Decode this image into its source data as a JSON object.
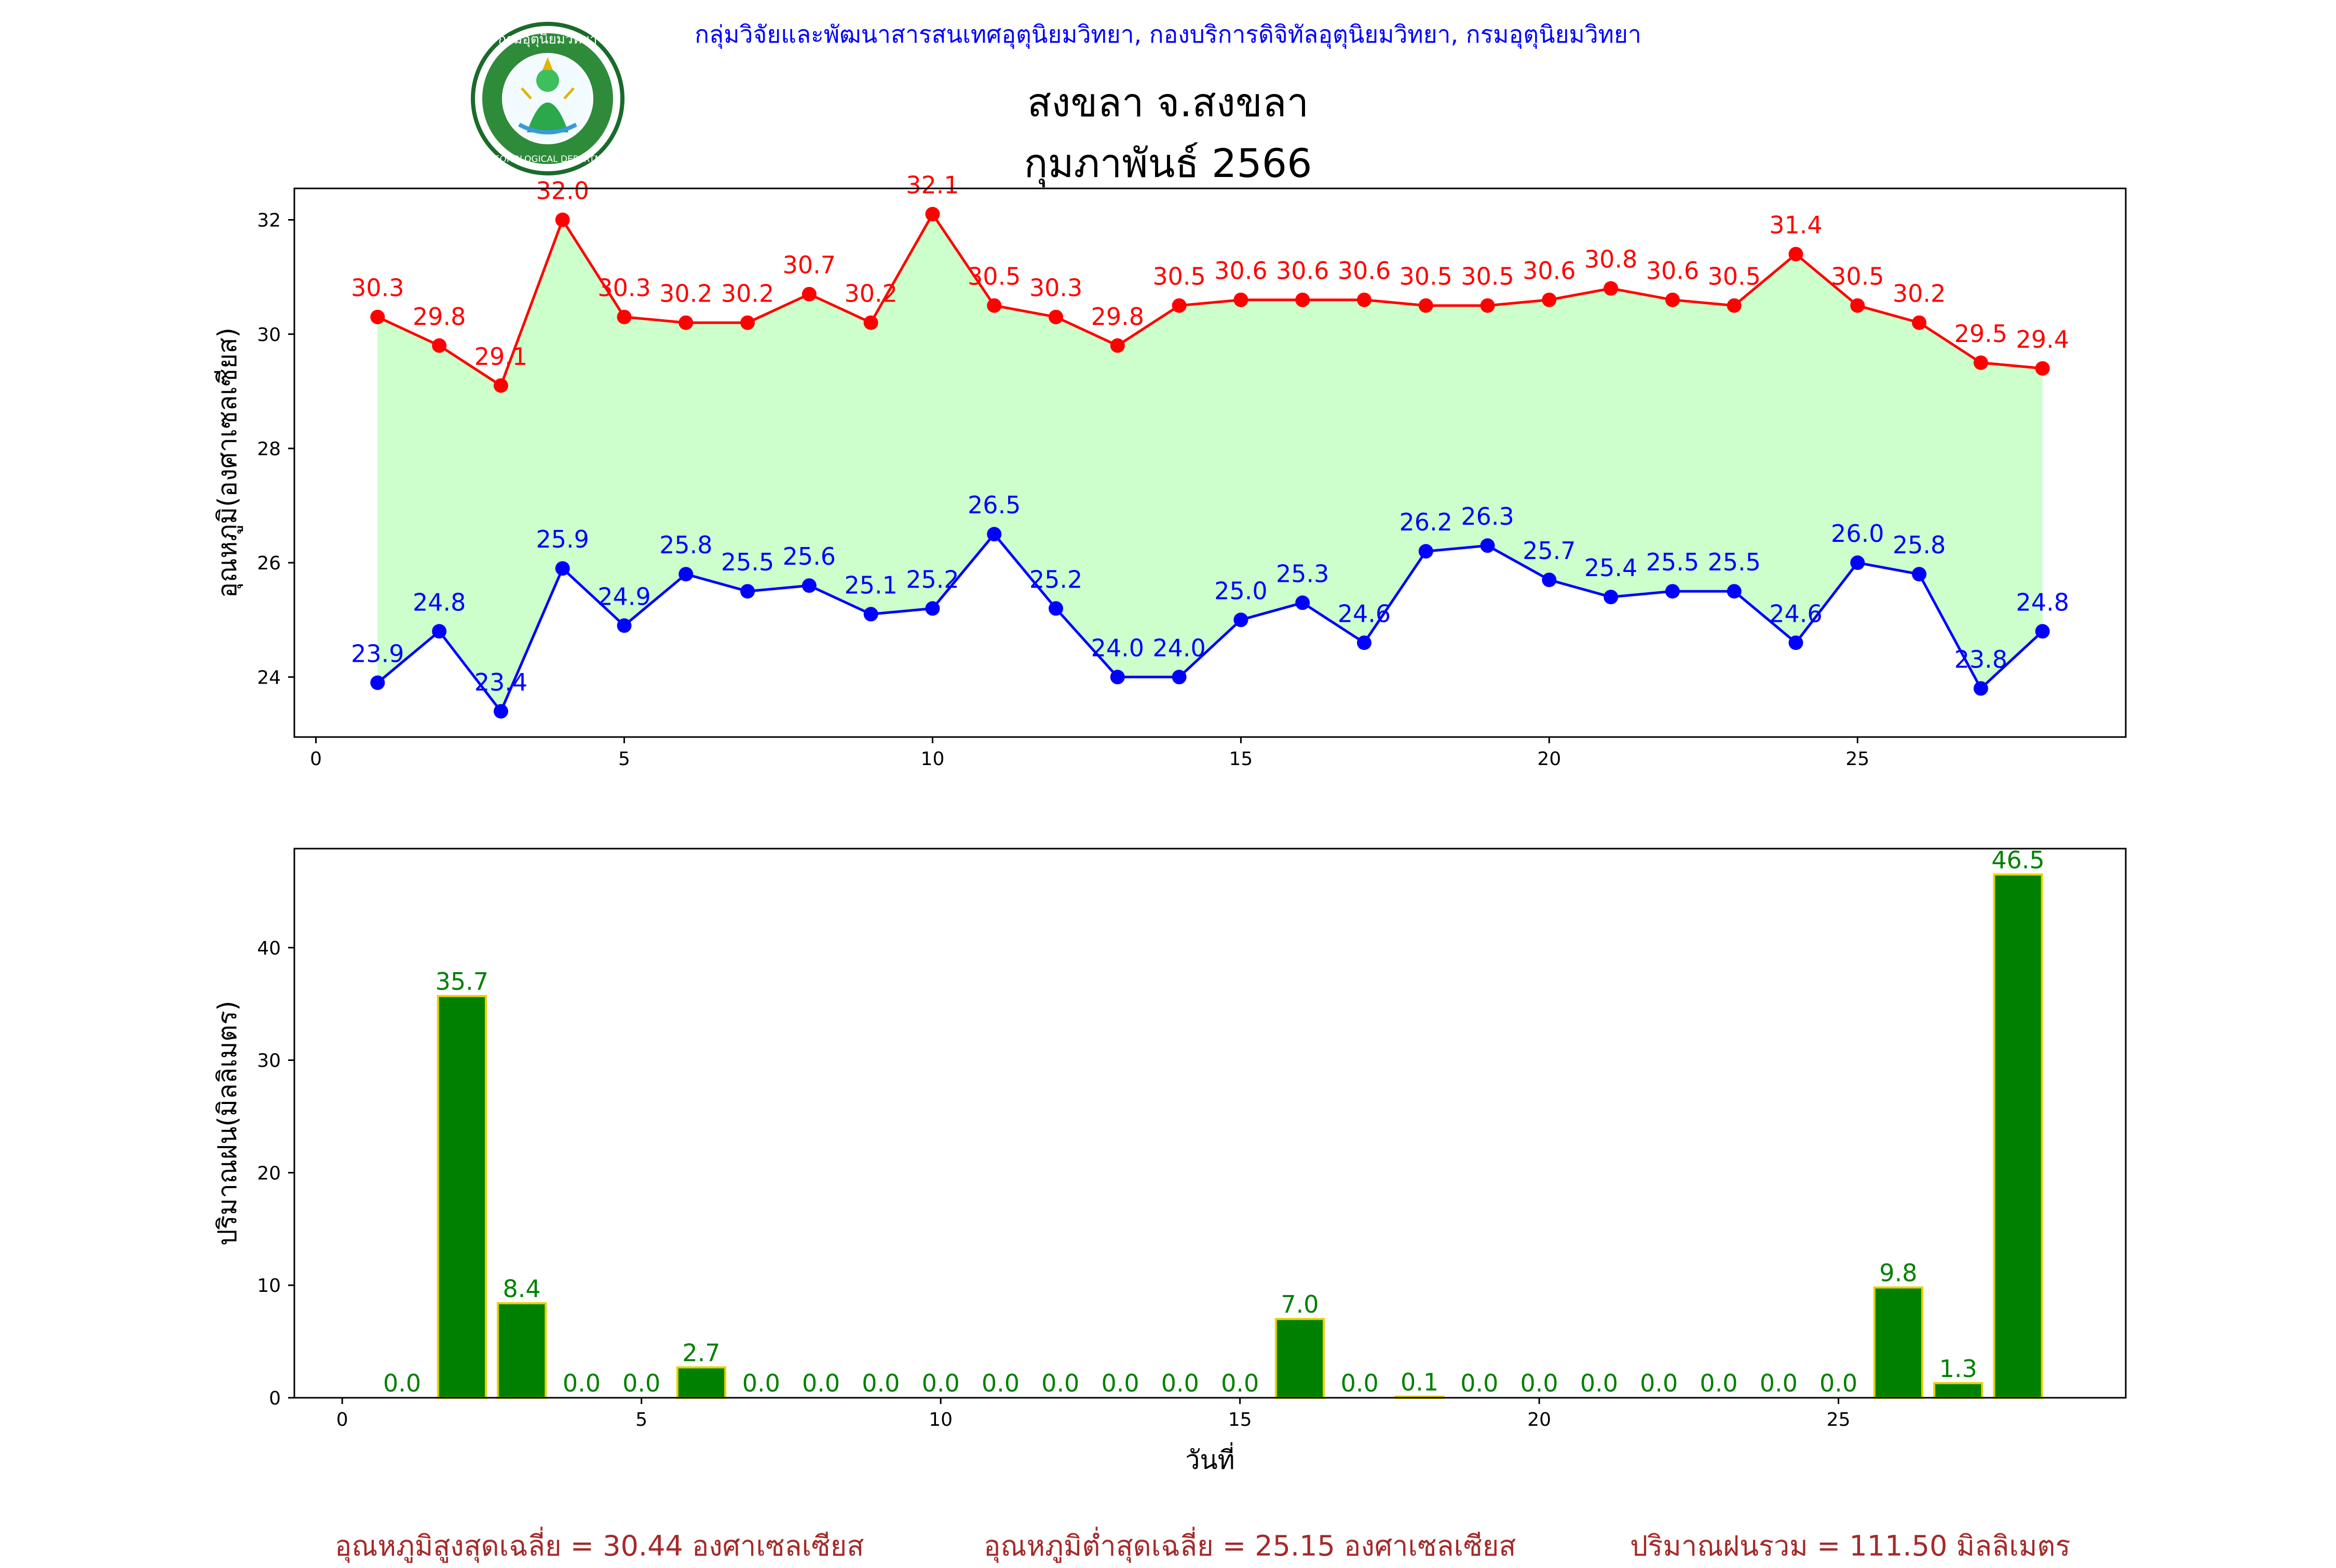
{
  "header": {
    "agency": "กลุ่มวิจัยและพัฒนาสารสนเทศอุตุนิยมวิทยา, กองบริการดิจิทัลอุตุนิยมวิทยา, กรมอุตุนิยมวิทยา",
    "station": "สงขลา จ.สงขลา",
    "month": "กุมภาพันธ์ 2566",
    "logo_text": "กรมอุตุนิยมวิทยา METEOROLOGICAL DEPARTMENT"
  },
  "colors": {
    "max_line": "#ff0000",
    "min_line": "#0000ff",
    "band_fill": "#ccffcc",
    "rain_bar": "#008000",
    "rain_edge": "#e6d200",
    "footer_text": "#a52a2a"
  },
  "chart_data": [
    {
      "type": "line",
      "title": "",
      "xlabel": "",
      "ylabel": "อุณหภูมิ(องศาเซลเซียส)",
      "x": [
        1,
        2,
        3,
        4,
        5,
        6,
        7,
        8,
        9,
        10,
        11,
        12,
        13,
        14,
        15,
        16,
        17,
        18,
        19,
        20,
        21,
        22,
        23,
        24,
        25,
        26,
        27,
        28
      ],
      "series": [
        {
          "name": "",
          "role": "max",
          "values": [
            30.3,
            29.8,
            29.1,
            32.0,
            30.3,
            30.2,
            30.2,
            30.7,
            30.2,
            32.1,
            30.5,
            30.3,
            29.8,
            30.5,
            30.6,
            30.6,
            30.6,
            30.5,
            30.5,
            30.6,
            30.8,
            30.6,
            30.5,
            31.4,
            30.5,
            30.2,
            29.5,
            29.4
          ]
        },
        {
          "name": "",
          "role": "min",
          "values": [
            23.9,
            24.8,
            23.4,
            25.9,
            24.9,
            25.8,
            25.5,
            25.6,
            25.1,
            25.2,
            26.5,
            25.2,
            24.0,
            24.0,
            25.0,
            25.3,
            24.6,
            26.2,
            26.3,
            25.7,
            25.4,
            25.5,
            25.5,
            24.6,
            26.0,
            25.8,
            23.8,
            24.8
          ]
        }
      ],
      "xticks": [
        "0",
        "5",
        "10",
        "15",
        "20",
        "25"
      ],
      "yticks": [
        "24",
        "26",
        "28",
        "30",
        "32"
      ],
      "xlim": [
        -0.35,
        29.35
      ],
      "ylim": [
        22.95,
        32.55
      ],
      "grid": false,
      "fill_between": true
    },
    {
      "type": "bar",
      "title": "",
      "xlabel": "วันที่",
      "ylabel": "ปริมาณฝน(มิลลิเมตร)",
      "x": [
        1,
        2,
        3,
        4,
        5,
        6,
        7,
        8,
        9,
        10,
        11,
        12,
        13,
        14,
        15,
        16,
        17,
        18,
        19,
        20,
        21,
        22,
        23,
        24,
        25,
        26,
        27,
        28
      ],
      "values": [
        0.0,
        35.7,
        8.4,
        0.0,
        0.0,
        2.7,
        0.0,
        0.0,
        0.0,
        0.0,
        0.0,
        0.0,
        0.0,
        0.0,
        0.0,
        7.0,
        0.0,
        0.1,
        0.0,
        0.0,
        0.0,
        0.0,
        0.0,
        0.0,
        0.0,
        9.8,
        1.3,
        46.5
      ],
      "labels": [
        "0.0",
        "35.7",
        "8.4",
        "0.0",
        "0.0",
        "2.7",
        "0.0",
        "0.0",
        "0.0",
        "0.0",
        "0.0",
        "0.0",
        "0.0",
        "0.0",
        "0.0",
        "7.0",
        "0.0",
        "0.1",
        "0.0",
        "0.0",
        "0.0",
        "0.0",
        "0.0",
        "0.0",
        "0.0",
        "9.8",
        "1.3",
        "46.5"
      ],
      "xticks": [
        "0",
        "5",
        "10",
        "15",
        "20",
        "25"
      ],
      "yticks": [
        "0",
        "10",
        "20",
        "30",
        "40"
      ],
      "xlim": [
        -0.8,
        29.8
      ],
      "ylim": [
        0,
        48.8
      ],
      "grid": false
    }
  ],
  "footer": {
    "avg_max": "อุณหภูมิสูงสุดเฉลี่ย = 30.44 องศาเซลเซียส",
    "avg_min": "อุณหภูมิต่ำสุดเฉลี่ย = 25.15 องศาเซลเซียส",
    "total_rain": "ปริมาณฝนรวม = 111.50 มิลลิเมตร"
  }
}
